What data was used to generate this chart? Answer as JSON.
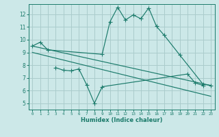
{
  "bg_color": "#cce8e8",
  "grid_color": "#aacccc",
  "line_color": "#1a7a6a",
  "xlabel": "Humidex (Indice chaleur)",
  "ylim": [
    4.5,
    12.8
  ],
  "xlim": [
    -0.5,
    23.5
  ],
  "yticks": [
    5,
    6,
    7,
    8,
    9,
    10,
    11,
    12
  ],
  "xticks": [
    0,
    1,
    2,
    3,
    4,
    5,
    6,
    7,
    8,
    9,
    10,
    11,
    12,
    13,
    14,
    15,
    16,
    17,
    18,
    19,
    20,
    21,
    22,
    23
  ],
  "line1_x": [
    0,
    1,
    2,
    9,
    10,
    11,
    12,
    13,
    14,
    15,
    16,
    17,
    19,
    22,
    23
  ],
  "line1_y": [
    9.5,
    9.8,
    9.2,
    8.85,
    11.4,
    12.55,
    11.55,
    11.95,
    11.65,
    12.5,
    11.05,
    10.35,
    8.8,
    6.5,
    6.4
  ],
  "line2_x": [
    0,
    23
  ],
  "line2_y": [
    9.5,
    6.4
  ],
  "line3_x": [
    3,
    4,
    5,
    6,
    7,
    8,
    9,
    20,
    21,
    22
  ],
  "line3_y": [
    7.8,
    7.6,
    7.55,
    7.7,
    6.45,
    5.0,
    6.3,
    7.3,
    6.6,
    6.4
  ],
  "line4_x": [
    0,
    23
  ],
  "line4_y": [
    9.0,
    5.55
  ]
}
